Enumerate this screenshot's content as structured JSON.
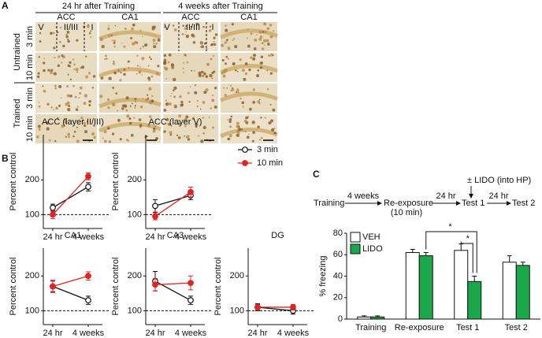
{
  "panel_labels": [
    "A",
    "B",
    "C"
  ],
  "panel_a": {
    "headers": [
      "24 hr after Training",
      "4 weeks after Training"
    ],
    "columns": [
      "ACC",
      "CA1",
      "ACC",
      "CA1"
    ],
    "groups": [
      "Untrained",
      "Trained"
    ],
    "rows": [
      "3 min",
      "10 min",
      "3 min",
      "10 min"
    ],
    "layers": [
      "V",
      "II/III",
      "I",
      "V",
      "II/III",
      "I"
    ]
  },
  "panel_b_series": [
    {
      "name": "3 min",
      "color": "#111111",
      "fill": "#ffffff"
    },
    {
      "name": "10 min",
      "color": "#e02424",
      "fill": "#e02424"
    }
  ],
  "chart_data": [
    {
      "type": "line",
      "title": "ACC (layer II/III)",
      "ylabel": "Percent control",
      "categories": [
        "24 hr",
        "4 weeks"
      ],
      "ylim": [
        60,
        330
      ],
      "yticks": [
        100,
        200
      ],
      "reference_line": 100,
      "series": [
        {
          "values": [
            120,
            180
          ],
          "errors": [
            10,
            12
          ]
        },
        {
          "values": [
            100,
            210
          ],
          "errors": [
            12,
            10
          ]
        }
      ]
    },
    {
      "type": "line",
      "title": "ACC (layer V)",
      "ylabel": "Percent control",
      "categories": [
        "24 hr",
        "4 weeks"
      ],
      "ylim": [
        60,
        330
      ],
      "yticks": [
        100,
        200
      ],
      "reference_line": 100,
      "series": [
        {
          "values": [
            125,
            155
          ],
          "errors": [
            18,
            12
          ]
        },
        {
          "values": [
            95,
            165
          ],
          "errors": [
            10,
            14
          ]
        }
      ]
    },
    {
      "type": "line",
      "title": "CA1",
      "ylabel": "Percent control",
      "categories": [
        "24 hr",
        "4 weeks"
      ],
      "ylim": [
        60,
        280
      ],
      "yticks": [
        100,
        200
      ],
      "reference_line": 100,
      "series": [
        {
          "values": [
            170,
            130
          ],
          "errors": [
            15,
            12
          ]
        },
        {
          "values": [
            170,
            200
          ],
          "errors": [
            18,
            12
          ]
        }
      ]
    },
    {
      "type": "line",
      "title": "CA3",
      "ylabel": "Percent control",
      "categories": [
        "24 hr",
        "4 weeks"
      ],
      "ylim": [
        60,
        280
      ],
      "yticks": [
        100,
        200
      ],
      "reference_line": 100,
      "series": [
        {
          "values": [
            185,
            130
          ],
          "errors": [
            28,
            12
          ]
        },
        {
          "values": [
            175,
            180
          ],
          "errors": [
            18,
            20
          ]
        }
      ]
    },
    {
      "type": "line",
      "title": "DG",
      "ylabel": "Percent control",
      "categories": [
        "24 hr",
        "4 weeks"
      ],
      "ylim": [
        60,
        280
      ],
      "yticks": [
        100,
        200
      ],
      "reference_line": 100,
      "series": [
        {
          "values": [
            110,
            100
          ],
          "errors": [
            10,
            10
          ]
        },
        {
          "values": [
            110,
            110
          ],
          "errors": [
            8,
            8
          ]
        }
      ]
    },
    {
      "type": "bar",
      "ylabel": "% freezing",
      "categories": [
        "Training",
        "Re-exposure",
        "Test 1",
        "Test 2"
      ],
      "ylim": [
        0,
        80
      ],
      "yticks": [
        0,
        20,
        40,
        60,
        80
      ],
      "series": [
        {
          "name": "VEH",
          "color": "#ffffff",
          "values": [
            2,
            62,
            64,
            53
          ],
          "errors": [
            1,
            3,
            6,
            6
          ]
        },
        {
          "name": "LIDO",
          "color": "#1aa84a",
          "values": [
            2,
            59,
            35,
            50
          ],
          "errors": [
            1,
            3,
            5,
            3
          ]
        }
      ],
      "annotations": [
        "*",
        "*"
      ]
    }
  ],
  "panel_c_diagram": {
    "steps": [
      "Training",
      "Re-exposure",
      "(10 min)",
      "Test 1",
      "Test 2"
    ],
    "intervals": [
      "4 weeks",
      "24 hr",
      "24 hr"
    ],
    "treatment": "± LIDO (into HP)"
  }
}
